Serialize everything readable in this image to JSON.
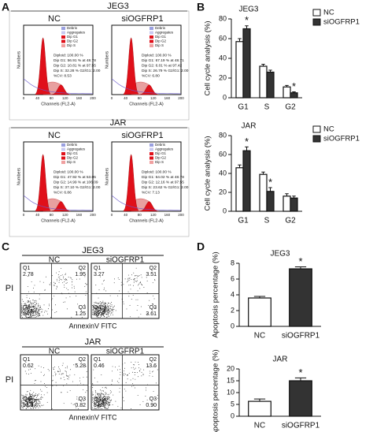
{
  "panel_a": {
    "label": "A",
    "groups": [
      {
        "title": "JEG3",
        "plots": [
          {
            "title": "NC",
            "legend": [
              "Debris",
              "Aggregates",
              "Dip G1",
              "Dip G2",
              "Dip S"
            ],
            "stats": [
              "Diploid: 100.00 %",
              "Dip G1: 56.91 % at 48.78",
              "Dip G2: 10.81 % at 97.55",
              "Dip S: 32.28 % G2/G1: 2.00",
              "%CV: 8.53"
            ],
            "y_label": "Numbers",
            "x_label": "Channels (FL2-A)",
            "xticks": [
              "0",
              "40",
              "80",
              "120",
              "160",
              "200"
            ]
          },
          {
            "title": "siOGFRP1",
            "legend": [
              "Debris",
              "Aggregates",
              "Dip G1",
              "Dip G2",
              "Dip S"
            ],
            "stats": [
              "Diploid: 100.00 %",
              "Dip G1: 67.19 % at 48.71",
              "Dip G2: 6.01 % at 97.42",
              "Dip S: 26.79 % G2/G1: 2.00",
              "%CV: 6.80"
            ],
            "y_label": "Numbers",
            "x_label": "Channels (FL2-A)",
            "xticks": [
              "0",
              "40",
              "80",
              "120",
              "160",
              "200"
            ]
          }
        ]
      },
      {
        "title": "JAR",
        "plots": [
          {
            "title": "NC",
            "legend": [
              "Debris",
              "Aggregates",
              "Dip G1",
              "Dip G2",
              "Dip S"
            ],
            "stats": [
              "Diploid: 100.00 %",
              "Dip G1: 47.92 % at 53.05",
              "Dip G2: 14.99 % at 106.09",
              "Dip S: 37.10 % G2/G1: 2.00",
              "%CV: 6.86"
            ],
            "y_label": "Numbers",
            "x_label": "Channels (FL2-A)",
            "xticks": [
              "0",
              "40",
              "80",
              "120",
              "160",
              "200"
            ]
          },
          {
            "title": "siOGFRP1",
            "legend": [
              "Debris",
              "Aggregates",
              "Dip G1",
              "Dip G2",
              "Dip S"
            ],
            "stats": [
              "Diploid: 100.00 %",
              "Dip G1: 64.02 % at 48.78",
              "Dip G2: 12.16 % at 97.55",
              "Dip S: 23.62 % G2/G1: 2.00",
              "%CV: 7.13"
            ],
            "y_label": "Numbers",
            "x_label": "Channels (FL2-A)",
            "xticks": [
              "0",
              "40",
              "80",
              "120",
              "160",
              "200"
            ]
          }
        ]
      }
    ]
  },
  "panel_b_label": "B",
  "panel_c": {
    "label": "C",
    "groups": [
      {
        "title": "JEG3",
        "y_label": "PI",
        "x_label": "AnnexinV FITC",
        "plots": [
          {
            "title": "NC",
            "quadrants": [
              {
                "name": "Q1",
                "value": "2.78"
              },
              {
                "name": "Q2",
                "value": "1.95"
              },
              {
                "name": "Q4",
                "value": "94"
              },
              {
                "name": "Q3",
                "value": "1.25"
              }
            ]
          },
          {
            "title": "siOGFRP1",
            "quadrants": [
              {
                "name": "Q1",
                "value": "3.27"
              },
              {
                "name": "Q2",
                "value": "3.51"
              },
              {
                "name": "Q4",
                "value": "89.6"
              },
              {
                "name": "Q3",
                "value": "3.61"
              }
            ]
          }
        ]
      },
      {
        "title": "JAR",
        "y_label": "PI",
        "x_label": "AnnexinV FITC",
        "plots": [
          {
            "title": "NC",
            "quadrants": [
              {
                "name": "Q1",
                "value": "0.62"
              },
              {
                "name": "Q2",
                "value": "5.28"
              },
              {
                "name": "Q4",
                "value": "93.3"
              },
              {
                "name": "Q3",
                "value": "0.82"
              }
            ]
          },
          {
            "title": "siOGFRP1",
            "quadrants": [
              {
                "name": "Q1",
                "value": "0.46"
              },
              {
                "name": "Q2",
                "value": "13.6"
              },
              {
                "name": "Q4",
                "value": "84.9"
              },
              {
                "name": "Q3",
                "value": "0.90"
              }
            ]
          }
        ]
      }
    ]
  },
  "panel_d_label": "D",
  "chart_data": [
    {
      "type": "bar",
      "title": "JEG3",
      "y_label": "Cell cycle analysis (%)",
      "categories": [
        "G1",
        "S",
        "G2"
      ],
      "ylim": [
        0,
        80
      ],
      "yticks": [
        0,
        20,
        40,
        60,
        80
      ],
      "legend": "top-right",
      "series": [
        {
          "name": "NC",
          "color": "#ffffff",
          "values": [
            57,
            32,
            11
          ],
          "errors": [
            3,
            2,
            1.5
          ]
        },
        {
          "name": "siOGFRP1",
          "color": "#333333",
          "values": [
            70,
            26,
            5
          ],
          "errors": [
            3,
            2,
            1
          ],
          "annotations": [
            "*",
            null,
            "*"
          ]
        }
      ]
    },
    {
      "type": "bar",
      "title": "JAR",
      "y_label": "Cell cycle analysis (%)",
      "categories": [
        "G1",
        "S",
        "G2"
      ],
      "ylim": [
        0,
        80
      ],
      "yticks": [
        0,
        20,
        40,
        60,
        80
      ],
      "legend": "top-right",
      "series": [
        {
          "name": "NC",
          "color": "#ffffff",
          "values": [
            46,
            39,
            16
          ],
          "errors": [
            3,
            2.5,
            2.5
          ]
        },
        {
          "name": "siOGFRP1",
          "color": "#333333",
          "values": [
            64,
            21,
            14
          ],
          "errors": [
            4,
            4,
            2
          ],
          "annotations": [
            "*",
            "*",
            null
          ]
        }
      ]
    },
    {
      "type": "bar",
      "title": "JEG3",
      "y_label": "Apoptosis percentage (%)",
      "categories": [
        "NC",
        "siOGFRP1"
      ],
      "ylim": [
        0,
        8
      ],
      "yticks": [
        0,
        2,
        4,
        6,
        8
      ],
      "series": [
        {
          "colors": [
            "#ffffff",
            "#333333"
          ],
          "values": [
            3.6,
            7.3
          ],
          "errors": [
            0.2,
            0.25
          ],
          "annotations": [
            null,
            "*"
          ]
        }
      ]
    },
    {
      "type": "bar",
      "title": "JAR",
      "y_label": "Apoptosis percentage (%)",
      "categories": [
        "NC",
        "siOGFRP1"
      ],
      "ylim": [
        0,
        20
      ],
      "yticks": [
        0,
        5,
        10,
        15,
        20
      ],
      "series": [
        {
          "colors": [
            "#ffffff",
            "#333333"
          ],
          "values": [
            6.3,
            15
          ],
          "errors": [
            1,
            1.2
          ],
          "annotations": [
            null,
            "*"
          ]
        }
      ]
    }
  ]
}
